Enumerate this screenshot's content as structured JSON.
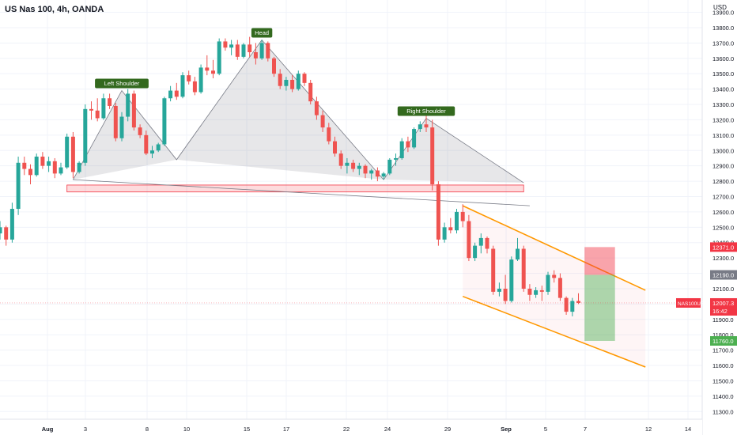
{
  "header": {
    "title": "US Nas 100, 4h, OANDA",
    "currency": "USD"
  },
  "chart_data": {
    "type": "candlestick",
    "title": "US Nas 100, 4h, OANDA",
    "y_unit": "USD",
    "ylim": [
      11250,
      13980
    ],
    "y_ticks": [
      11300,
      11400,
      11500,
      11600,
      11700,
      11800,
      11900,
      12000,
      12100,
      12200,
      12300,
      12400,
      12500,
      12600,
      12700,
      12800,
      12900,
      13000,
      13100,
      13200,
      13300,
      13400,
      13500,
      13600,
      13700,
      13800,
      13900
    ],
    "x_ticks": [
      "Aug",
      "3",
      "8",
      "10",
      "15",
      "17",
      "22",
      "24",
      "29",
      "Sep",
      "5",
      "7",
      "12",
      "14"
    ],
    "x_tick_bold": [
      "Aug",
      "Sep"
    ],
    "pattern_labels": {
      "left_shoulder": "Left Shoulder",
      "head": "Head",
      "right_shoulder": "Right Shoulder"
    },
    "pattern_points": {
      "left_shoulder": {
        "bar": 20,
        "price": 13390
      },
      "head": {
        "bar": 43,
        "price": 13720
      },
      "right_shoulder": {
        "bar": 70,
        "price": 13210
      },
      "neck_left": {
        "bar": 12,
        "price": 12810
      },
      "neck_mid1": {
        "bar": 29,
        "price": 12940
      },
      "neck_mid2": {
        "bar": 63,
        "price": 12810
      }
    },
    "support_zone": {
      "from_bar": 11,
      "to_bar": 86,
      "low": 12730,
      "high": 12775
    },
    "channel": {
      "upper": {
        "start_bar": 76,
        "start_price": 12640,
        "end_bar": 106,
        "end_price": 12090
      },
      "lower": {
        "start_bar": 76,
        "start_price": 12050,
        "end_bar": 106,
        "end_price": 11590
      }
    },
    "position": {
      "from_bar": 96,
      "to_bar": 101,
      "entry": 12190,
      "stop": 12371,
      "target": 11760
    },
    "price_labels": [
      {
        "text": "12371.0",
        "price": 12371,
        "color": "#f23645"
      },
      {
        "text": "12190.0",
        "price": 12190,
        "color": "#787b86"
      },
      {
        "text": "11760.0",
        "price": 11760,
        "color": "#4caf50"
      }
    ],
    "current_price": {
      "symbol": "NAS100USD",
      "price": 12007.3,
      "text": "12007.3",
      "countdown": "16:42"
    },
    "candles": [
      [
        12460,
        12540,
        12420,
        12500
      ],
      [
        12500,
        12510,
        12380,
        12420
      ],
      [
        12420,
        12660,
        12400,
        12620
      ],
      [
        12620,
        12960,
        12580,
        12920
      ],
      [
        12920,
        12960,
        12840,
        12880
      ],
      [
        12880,
        12910,
        12780,
        12840
      ],
      [
        12840,
        12980,
        12830,
        12960
      ],
      [
        12960,
        12990,
        12880,
        12900
      ],
      [
        12900,
        12960,
        12860,
        12930
      ],
      [
        12930,
        12950,
        12820,
        12850
      ],
      [
        12850,
        12920,
        12840,
        12890
      ],
      [
        12890,
        13110,
        12880,
        13090
      ],
      [
        13090,
        13120,
        12820,
        12860
      ],
      [
        12860,
        12930,
        12850,
        12920
      ],
      [
        12920,
        13300,
        12900,
        13270
      ],
      [
        13270,
        13320,
        13200,
        13260
      ],
      [
        13260,
        13340,
        13190,
        13210
      ],
      [
        13210,
        13370,
        13200,
        13340
      ],
      [
        13340,
        13370,
        13270,
        13290
      ],
      [
        13290,
        13310,
        13060,
        13080
      ],
      [
        13080,
        13250,
        13060,
        13220
      ],
      [
        13220,
        13400,
        13190,
        13370
      ],
      [
        13370,
        13390,
        13130,
        13150
      ],
      [
        13150,
        13170,
        13080,
        13100
      ],
      [
        13100,
        13130,
        12970,
        12980
      ],
      [
        12980,
        13030,
        12950,
        13000
      ],
      [
        13000,
        13050,
        12990,
        13040
      ],
      [
        13040,
        13350,
        13030,
        13340
      ],
      [
        13340,
        13420,
        13320,
        13390
      ],
      [
        13390,
        13440,
        13330,
        13350
      ],
      [
        13350,
        13510,
        13340,
        13490
      ],
      [
        13490,
        13520,
        13430,
        13450
      ],
      [
        13450,
        13480,
        13360,
        13380
      ],
      [
        13380,
        13560,
        13370,
        13540
      ],
      [
        13540,
        13620,
        13490,
        13520
      ],
      [
        13520,
        13590,
        13470,
        13500
      ],
      [
        13500,
        13730,
        13490,
        13710
      ],
      [
        13710,
        13730,
        13650,
        13670
      ],
      [
        13670,
        13720,
        13620,
        13690
      ],
      [
        13690,
        13720,
        13590,
        13610
      ],
      [
        13610,
        13700,
        13600,
        13690
      ],
      [
        13690,
        13740,
        13610,
        13640
      ],
      [
        13640,
        13700,
        13560,
        13600
      ],
      [
        13600,
        13720,
        13590,
        13700
      ],
      [
        13700,
        13710,
        13580,
        13600
      ],
      [
        13600,
        13610,
        13480,
        13500
      ],
      [
        13500,
        13530,
        13400,
        13420
      ],
      [
        13420,
        13480,
        13390,
        13460
      ],
      [
        13460,
        13490,
        13380,
        13400
      ],
      [
        13400,
        13520,
        13390,
        13500
      ],
      [
        13500,
        13510,
        13420,
        13440
      ],
      [
        13440,
        13460,
        13300,
        13320
      ],
      [
        13320,
        13350,
        13200,
        13230
      ],
      [
        13230,
        13260,
        13120,
        13150
      ],
      [
        13150,
        13180,
        13040,
        13060
      ],
      [
        13060,
        13090,
        12960,
        12980
      ],
      [
        12980,
        13000,
        12880,
        12900
      ],
      [
        12900,
        12950,
        12850,
        12920
      ],
      [
        12920,
        12940,
        12860,
        12880
      ],
      [
        12880,
        12920,
        12840,
        12900
      ],
      [
        12900,
        12910,
        12820,
        12850
      ],
      [
        12850,
        12880,
        12810,
        12870
      ],
      [
        12870,
        12890,
        12800,
        12830
      ],
      [
        12830,
        12860,
        12810,
        12850
      ],
      [
        12850,
        12950,
        12840,
        12940
      ],
      [
        12940,
        12980,
        12900,
        12950
      ],
      [
        12950,
        13080,
        12940,
        13060
      ],
      [
        13060,
        13090,
        12990,
        13020
      ],
      [
        13020,
        13150,
        13010,
        13140
      ],
      [
        13140,
        13190,
        13120,
        13170
      ],
      [
        13170,
        13230,
        13120,
        13150
      ],
      [
        13150,
        13200,
        12740,
        12780
      ],
      [
        12780,
        12800,
        12380,
        12420
      ],
      [
        12420,
        12530,
        12400,
        12500
      ],
      [
        12500,
        12560,
        12460,
        12480
      ],
      [
        12480,
        12620,
        12460,
        12600
      ],
      [
        12600,
        12650,
        12500,
        12540
      ],
      [
        12540,
        12580,
        12280,
        12300
      ],
      [
        12300,
        12400,
        12280,
        12380
      ],
      [
        12380,
        12460,
        12330,
        12430
      ],
      [
        12430,
        12440,
        12330,
        12360
      ],
      [
        12360,
        12380,
        12060,
        12080
      ],
      [
        12080,
        12140,
        12050,
        12100
      ],
      [
        12100,
        12190,
        12000,
        12020
      ],
      [
        12020,
        12310,
        12010,
        12290
      ],
      [
        12290,
        12430,
        12280,
        12360
      ],
      [
        12360,
        12380,
        12080,
        12100
      ],
      [
        12100,
        12130,
        12020,
        12060
      ],
      [
        12060,
        12110,
        12040,
        12090
      ],
      [
        12090,
        12120,
        12020,
        12080
      ],
      [
        12080,
        12210,
        12060,
        12190
      ],
      [
        12190,
        12220,
        12140,
        12170
      ],
      [
        12170,
        12200,
        12020,
        12040
      ],
      [
        12040,
        12050,
        11930,
        11950
      ],
      [
        11950,
        12040,
        11920,
        12020
      ],
      [
        12020,
        12070,
        12000,
        12007.3
      ]
    ]
  }
}
